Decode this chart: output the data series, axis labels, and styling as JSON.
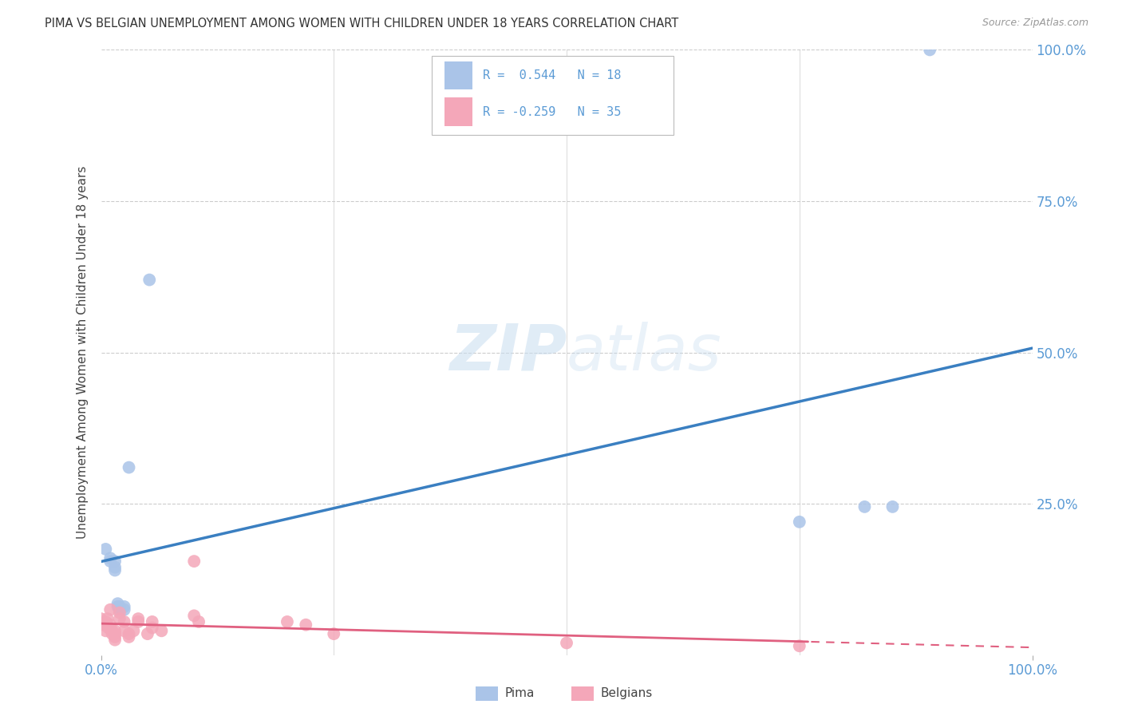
{
  "title": "PIMA VS BELGIAN UNEMPLOYMENT AMONG WOMEN WITH CHILDREN UNDER 18 YEARS CORRELATION CHART",
  "source": "Source: ZipAtlas.com",
  "ylabel": "Unemployment Among Women with Children Under 18 years",
  "xlim": [
    0,
    1.0
  ],
  "ylim": [
    0,
    1.0
  ],
  "pima_R": 0.544,
  "pima_N": 18,
  "belgians_R": -0.259,
  "belgians_N": 35,
  "pima_color": "#aac4e8",
  "belgians_color": "#f4a7b9",
  "pima_line_color": "#3a7fc1",
  "belgians_line_color": "#e06080",
  "background_color": "#ffffff",
  "tick_color": "#5b9bd5",
  "grid_color": "#cccccc",
  "watermark_color": "#ddeeff",
  "pima_x": [
    0.005,
    0.01,
    0.01,
    0.015,
    0.015,
    0.015,
    0.018,
    0.018,
    0.02,
    0.02,
    0.025,
    0.025,
    0.03,
    0.052,
    0.75,
    0.82,
    0.85,
    0.89
  ],
  "pima_y": [
    0.175,
    0.16,
    0.155,
    0.155,
    0.145,
    0.14,
    0.085,
    0.08,
    0.08,
    0.075,
    0.08,
    0.075,
    0.31,
    0.62,
    0.22,
    0.245,
    0.245,
    1.0
  ],
  "belgians_x": [
    0.0,
    0.0,
    0.005,
    0.005,
    0.007,
    0.008,
    0.01,
    0.01,
    0.012,
    0.012,
    0.015,
    0.015,
    0.015,
    0.015,
    0.02,
    0.02,
    0.025,
    0.025,
    0.03,
    0.03,
    0.035,
    0.04,
    0.04,
    0.05,
    0.055,
    0.055,
    0.065,
    0.1,
    0.1,
    0.105,
    0.2,
    0.22,
    0.25,
    0.5,
    0.75
  ],
  "belgians_y": [
    0.06,
    0.05,
    0.055,
    0.04,
    0.06,
    0.045,
    0.075,
    0.05,
    0.04,
    0.035,
    0.04,
    0.035,
    0.03,
    0.025,
    0.07,
    0.06,
    0.055,
    0.04,
    0.035,
    0.03,
    0.04,
    0.06,
    0.055,
    0.035,
    0.055,
    0.045,
    0.04,
    0.155,
    0.065,
    0.055,
    0.055,
    0.05,
    0.035,
    0.02,
    0.015
  ],
  "marker_size": 130,
  "legend_label_pima": "Pima",
  "legend_label_belgians": "Belgians",
  "ytick_positions": [
    0.25,
    0.5,
    0.75,
    1.0
  ],
  "ytick_labels": [
    "25.0%",
    "50.0%",
    "75.0%",
    "100.0%"
  ]
}
